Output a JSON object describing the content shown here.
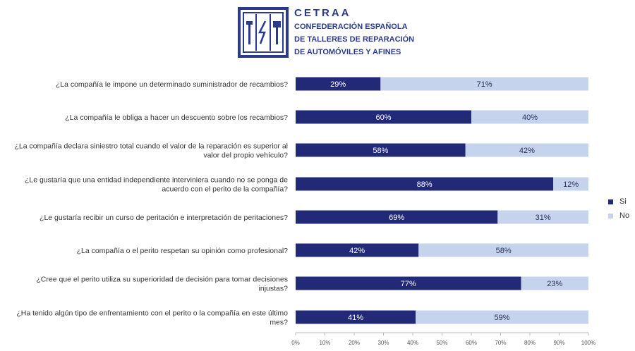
{
  "header": {
    "abbr": "CETRAA",
    "name_line1": "CONFEDERACIÓN ESPAÑOLA",
    "name_line2": "DE TALLERES DE REPARACIÓN",
    "name_line3": "DE AUTOMÓVILES Y AFINES"
  },
  "colors": {
    "si": "#222a78",
    "no": "#c5d3ed",
    "brand": "#2b3a8c"
  },
  "chart_data": {
    "type": "bar",
    "orientation": "horizontal",
    "stacked": true,
    "categories": [
      "¿La compañía le impone un determinado suministrador de recambios?",
      "¿La compañía le obliga a hacer un descuento sobre los recambios?",
      "¿La compañía declara siniestro total cuando el valor de la reparación es superior al valor del propio vehículo?",
      "¿Le gustaría que una entidad independiente interviniera cuando no se ponga de acuerdo con el perito de la compañía?",
      "¿Le gustaría recibir un curso de peritación e interpretación de peritaciones?",
      "¿La compañía o el perito respetan su opinión como profesional?",
      "¿Cree que el perito utiliza su superioridad de decisión para tomar decisiones injustas?",
      "¿Ha tenido algún tipo de enfrentamiento con el perito o la compañía en este último mes?"
    ],
    "category_lines": [
      [
        "¿La compañía le impone un determinado suministrador de recambios?"
      ],
      [
        "¿La compañía le obliga a hacer un descuento sobre los recambios?"
      ],
      [
        "¿La compañía declara siniestro total cuando el valor de la reparación es superior al",
        "valor del propio vehículo?"
      ],
      [
        "¿Le gustaría que una entidad independiente interviniera cuando no se ponga de",
        "acuerdo con el perito de la compañía?"
      ],
      [
        "¿Le gustaría recibir un curso de peritación e interpretación de peritaciones?"
      ],
      [
        "¿La compañía o el perito respetan su opinión como profesional?"
      ],
      [
        "¿Cree que el perito utiliza su superioridad de decisión para tomar decisiones",
        "injustas?"
      ],
      [
        "¿Ha tenido algún tipo de enfrentamiento con el perito o la compañía en este último",
        "mes?"
      ]
    ],
    "series": [
      {
        "name": "Si",
        "values": [
          29,
          60,
          58,
          88,
          69,
          42,
          77,
          41
        ]
      },
      {
        "name": "No",
        "values": [
          71,
          40,
          42,
          12,
          31,
          58,
          23,
          59
        ]
      }
    ],
    "value_suffix": "%",
    "xlim": [
      0,
      100
    ],
    "xticks": [
      "0%",
      "10%",
      "20%",
      "30%",
      "40%",
      "50%",
      "60%",
      "70%",
      "80%",
      "90%",
      "100%"
    ],
    "legend_position": "right",
    "grid": false
  }
}
